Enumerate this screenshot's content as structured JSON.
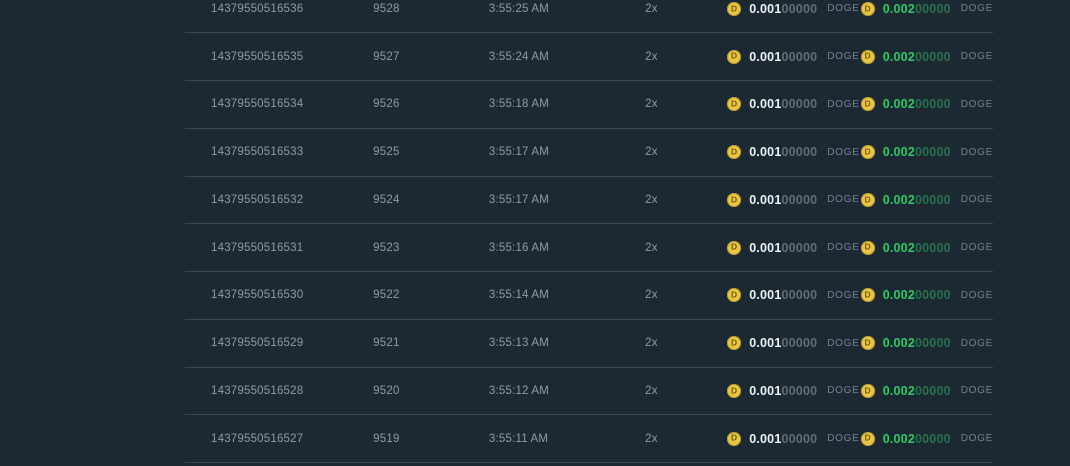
{
  "table": {
    "currency": "DOGE",
    "coin_letter": "D",
    "rows": [
      {
        "bet_id": "14379550516536",
        "round": "9528",
        "time": "3:55:25 AM",
        "multiplier": "2x",
        "bet_main": "0.001",
        "bet_zeros": "00000",
        "profit_main": "0.002",
        "profit_zeros": "00000"
      },
      {
        "bet_id": "14379550516535",
        "round": "9527",
        "time": "3:55:24 AM",
        "multiplier": "2x",
        "bet_main": "0.001",
        "bet_zeros": "00000",
        "profit_main": "0.002",
        "profit_zeros": "00000"
      },
      {
        "bet_id": "14379550516534",
        "round": "9526",
        "time": "3:55:18 AM",
        "multiplier": "2x",
        "bet_main": "0.001",
        "bet_zeros": "00000",
        "profit_main": "0.002",
        "profit_zeros": "00000"
      },
      {
        "bet_id": "14379550516533",
        "round": "9525",
        "time": "3:55:17 AM",
        "multiplier": "2x",
        "bet_main": "0.001",
        "bet_zeros": "00000",
        "profit_main": "0.002",
        "profit_zeros": "00000"
      },
      {
        "bet_id": "14379550516532",
        "round": "9524",
        "time": "3:55:17 AM",
        "multiplier": "2x",
        "bet_main": "0.001",
        "bet_zeros": "00000",
        "profit_main": "0.002",
        "profit_zeros": "00000"
      },
      {
        "bet_id": "14379550516531",
        "round": "9523",
        "time": "3:55:16 AM",
        "multiplier": "2x",
        "bet_main": "0.001",
        "bet_zeros": "00000",
        "profit_main": "0.002",
        "profit_zeros": "00000"
      },
      {
        "bet_id": "14379550516530",
        "round": "9522",
        "time": "3:55:14 AM",
        "multiplier": "2x",
        "bet_main": "0.001",
        "bet_zeros": "00000",
        "profit_main": "0.002",
        "profit_zeros": "00000"
      },
      {
        "bet_id": "14379550516529",
        "round": "9521",
        "time": "3:55:13 AM",
        "multiplier": "2x",
        "bet_main": "0.001",
        "bet_zeros": "00000",
        "profit_main": "0.002",
        "profit_zeros": "00000"
      },
      {
        "bet_id": "14379550516528",
        "round": "9520",
        "time": "3:55:12 AM",
        "multiplier": "2x",
        "bet_main": "0.001",
        "bet_zeros": "00000",
        "profit_main": "0.002",
        "profit_zeros": "00000"
      },
      {
        "bet_id": "14379550516527",
        "round": "9519",
        "time": "3:55:11 AM",
        "multiplier": "2x",
        "bet_main": "0.001",
        "bet_zeros": "00000",
        "profit_main": "0.002",
        "profit_zeros": "00000"
      }
    ]
  },
  "colors": {
    "background": "#1c2932",
    "divider": "#3a4754",
    "muted_text": "#8e9ba7",
    "amount_text": "#eef2f4",
    "amount_trailing_zeros": "#5f6e7a",
    "profit_green": "#33c764",
    "profit_trailing_zeros": "#29714d",
    "currency_label": "#74828e",
    "coin_fill": "#e9c644",
    "coin_ring": "#b8992c",
    "coin_letter": "#6f5c10"
  }
}
